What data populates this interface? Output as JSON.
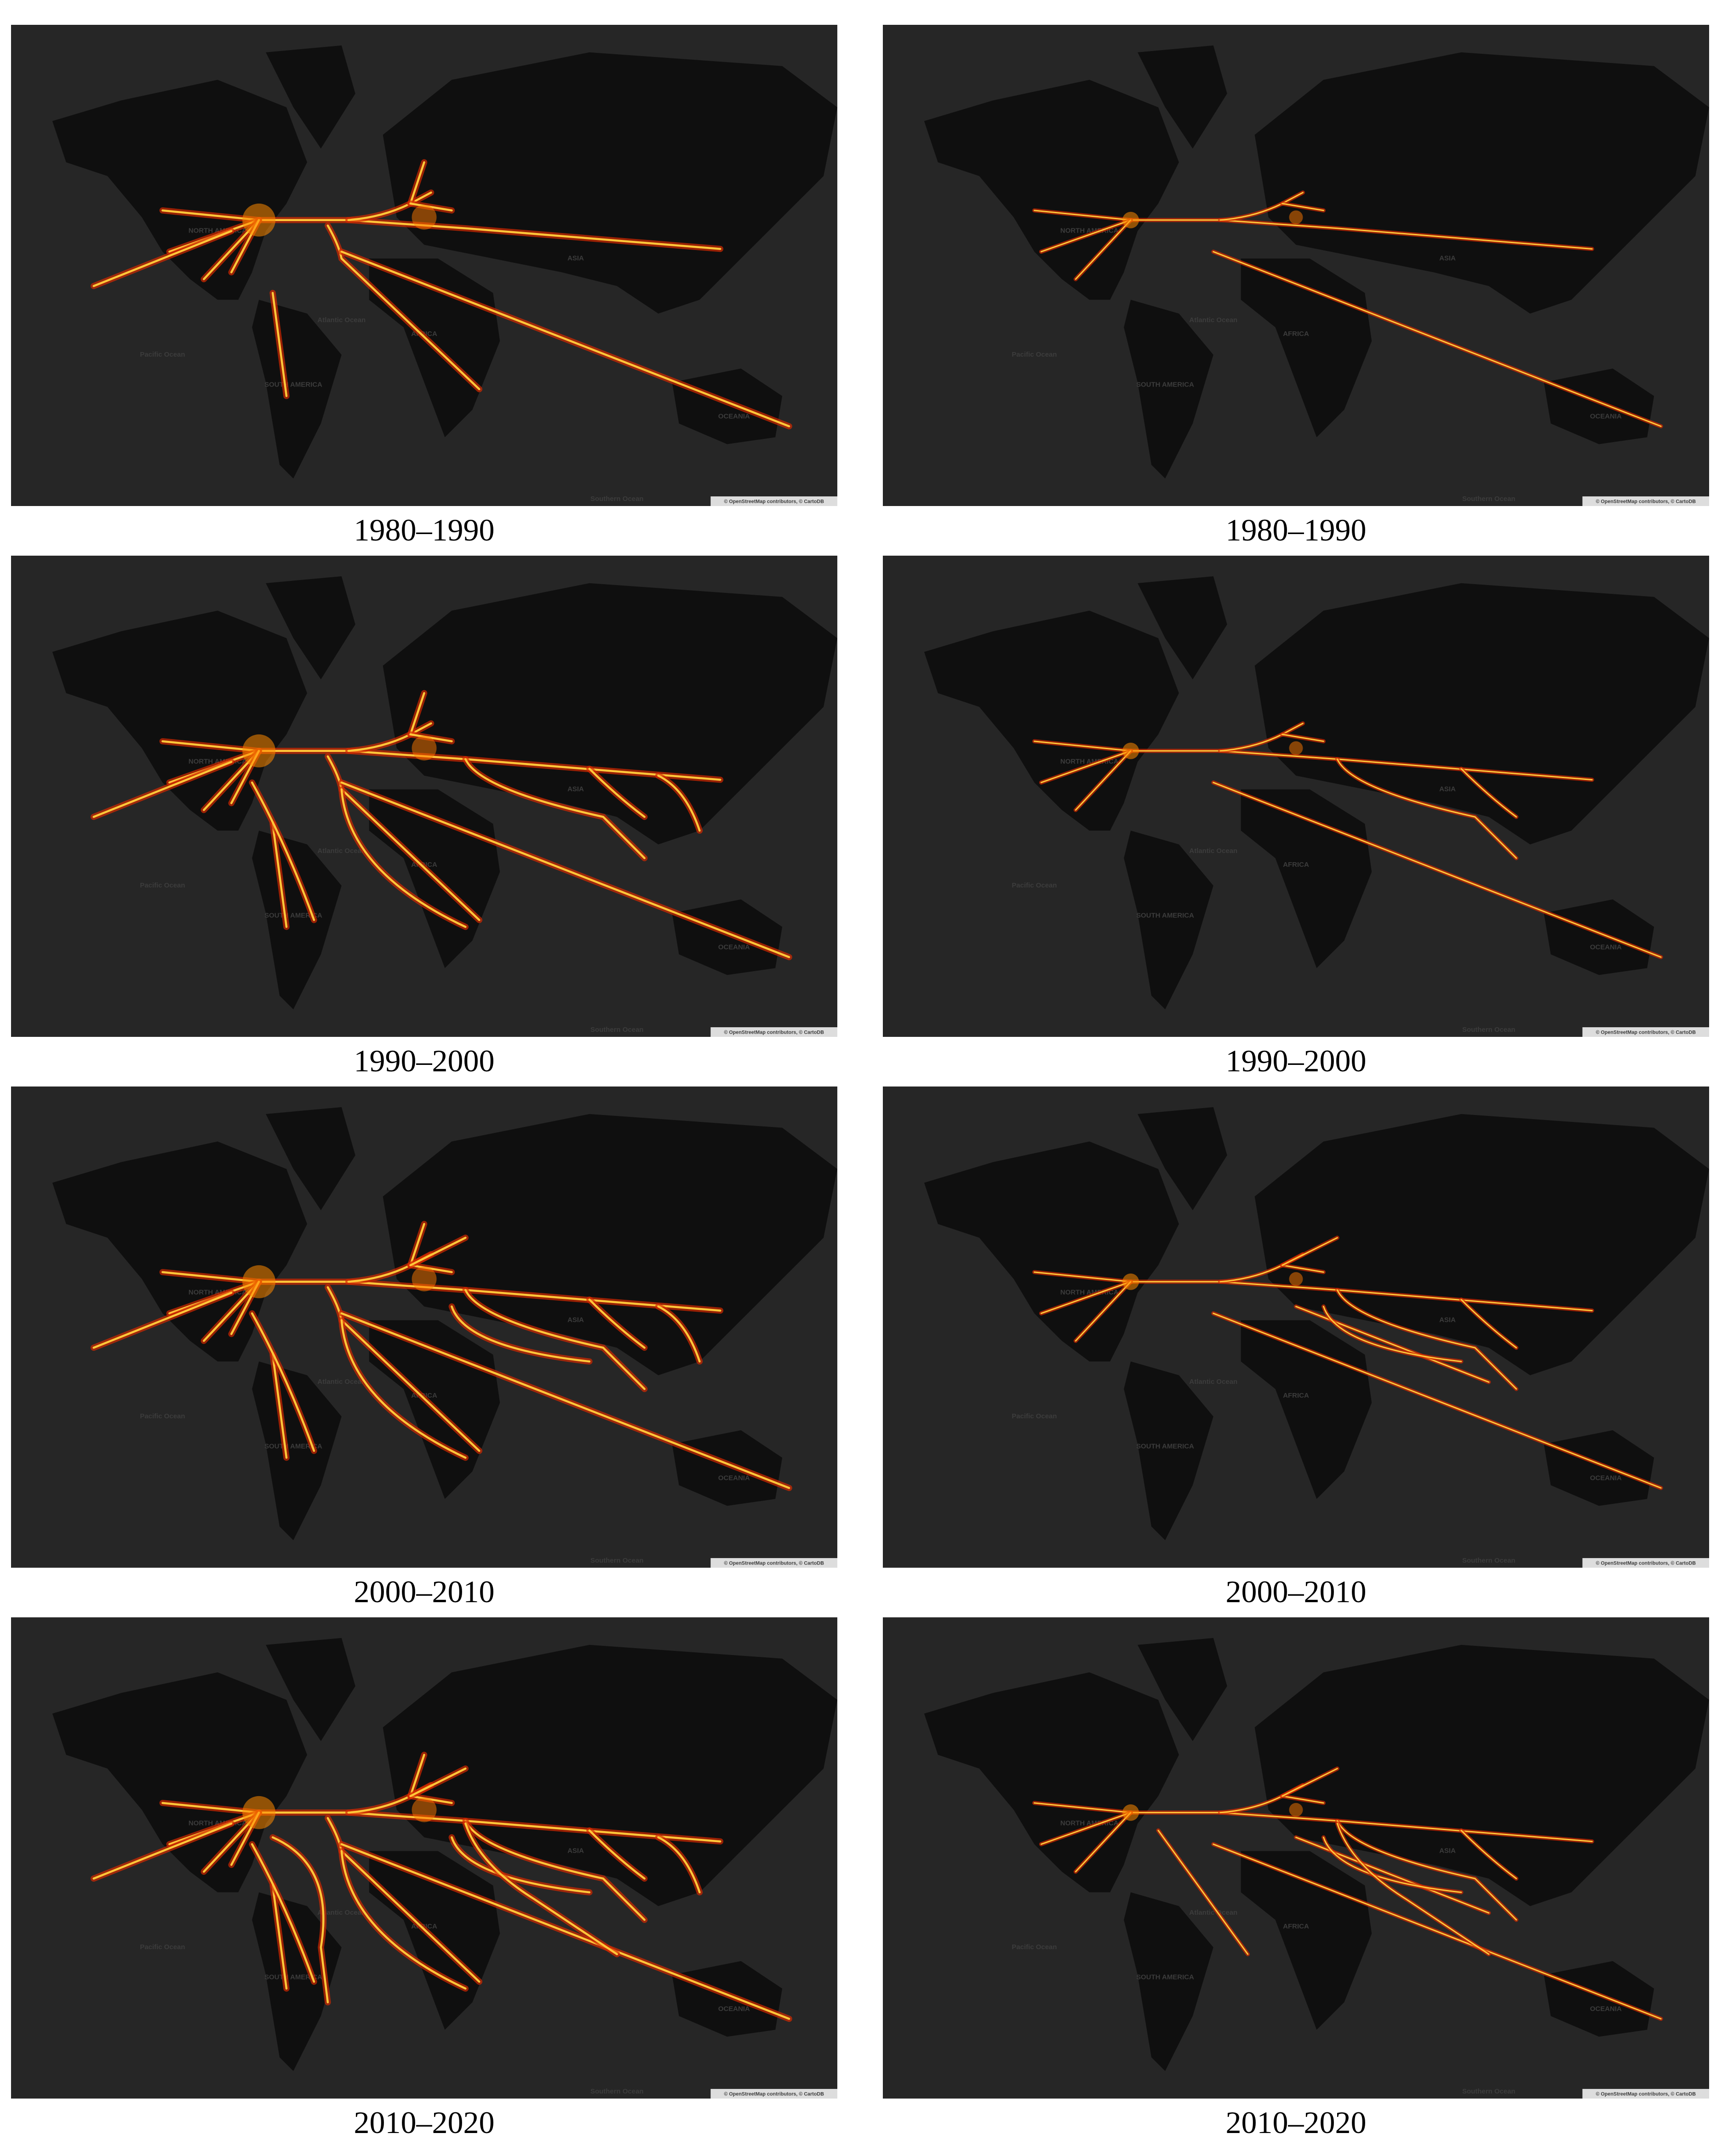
{
  "panels": [
    {
      "caption": "1980–1990"
    },
    {
      "caption": "1980–1990"
    },
    {
      "caption": "1990–2000"
    },
    {
      "caption": "1990–2000"
    },
    {
      "caption": "2000–2010"
    },
    {
      "caption": "2000–2010"
    },
    {
      "caption": "2010–2020"
    },
    {
      "caption": "2010–2020"
    }
  ],
  "map_labels": {
    "north_america": "NORTH AMERICA",
    "south_america": "SOUTH AMERICA",
    "asia": "ASIA",
    "africa": "AFRICA",
    "oceania": "OCEANIA",
    "atlantic": "Atlantic Ocean",
    "pacific": "Pacific Ocean",
    "southern": "Southern Ocean"
  },
  "attribution": "© OpenStreetMap contributors, © CartoDB"
}
